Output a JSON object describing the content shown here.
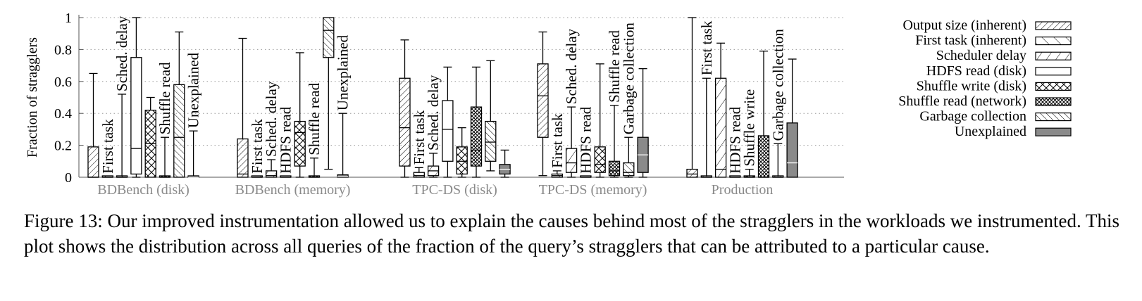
{
  "caption": "Figure 13: Our improved instrumentation allowed us to explain the causes behind most of the stragglers in the workloads we instrumented. This plot shows the distribution across all queries of the fraction of the query’s stragglers that can be attributed to a particular cause.",
  "chart_data": {
    "type": "boxplot",
    "ylabel": "Fraction of stragglers",
    "ylim": [
      0,
      1
    ],
    "yticks": [
      0,
      0.2,
      0.4,
      0.6,
      0.8,
      1
    ],
    "ytick_labels": [
      "0",
      "0.2",
      "0.4",
      "0.6",
      "0.8",
      "1"
    ],
    "grid": true,
    "legend_position": "right",
    "legend": [
      {
        "label": "Output size (inherent)",
        "pattern": "diag-dense"
      },
      {
        "label": "First task (inherent)",
        "pattern": "backdiag"
      },
      {
        "label": "Scheduler delay",
        "pattern": "diag-sparse"
      },
      {
        "label": "HDFS read (disk)",
        "pattern": "none"
      },
      {
        "label": "Shuffle write (disk)",
        "pattern": "crosshatch"
      },
      {
        "label": "Shuffle read (network)",
        "pattern": "dense-crosshatch"
      },
      {
        "label": "Garbage collection",
        "pattern": "backdiag-dense"
      },
      {
        "label": "Unexplained",
        "pattern": "solid-gray"
      }
    ],
    "groups": [
      {
        "name": "BDBench (disk)",
        "boxes": [
          {
            "cause": "Output size (inherent)",
            "min": 0,
            "q1": 0,
            "median": 0,
            "q3": 0.19,
            "max": 0.65
          },
          {
            "cause": "First task (inherent)",
            "min": 0,
            "q1": 0,
            "median": 0,
            "q3": 0.005,
            "max": 0.005,
            "label": "First task"
          },
          {
            "cause": "Scheduler delay",
            "min": 0,
            "q1": 0,
            "median": 0,
            "q3": 0.005,
            "max": 0.52,
            "label": "Sched. delay"
          },
          {
            "cause": "HDFS read (disk)",
            "min": 0,
            "q1": 0.02,
            "median": 0.18,
            "q3": 0.75,
            "max": 1.0
          },
          {
            "cause": "Shuffle write (disk)",
            "min": 0,
            "q1": 0.0,
            "median": 0.21,
            "q3": 0.42,
            "max": 0.5
          },
          {
            "cause": "Shuffle read (network)",
            "min": 0,
            "q1": 0,
            "median": 0,
            "q3": 0.005,
            "max": 0.25,
            "label": "Shuffle read"
          },
          {
            "cause": "Garbage collection",
            "min": 0,
            "q1": 0.0,
            "median": 0.25,
            "q3": 0.58,
            "max": 0.91
          },
          {
            "cause": "Unexplained",
            "min": 0,
            "q1": 0,
            "median": 0,
            "q3": 0.005,
            "max": 0.29,
            "label": "Unexplained"
          }
        ]
      },
      {
        "name": "BDBench (memory)",
        "boxes": [
          {
            "cause": "Output size (inherent)",
            "min": 0,
            "q1": 0.0,
            "median": 0.02,
            "q3": 0.24,
            "max": 0.87
          },
          {
            "cause": "First task (inherent)",
            "min": 0,
            "q1": 0,
            "median": 0,
            "q3": 0.005,
            "max": 0.005,
            "label": "First task"
          },
          {
            "cause": "Scheduler delay",
            "min": 0,
            "q1": 0,
            "median": 0.01,
            "q3": 0.04,
            "max": 0.11,
            "label": "Sched. delay"
          },
          {
            "cause": "HDFS read (disk)",
            "min": 0,
            "q1": 0,
            "median": 0,
            "q3": 0.005,
            "max": 0.005,
            "label": "HDFS read"
          },
          {
            "cause": "Shuffle write (disk)",
            "min": 0,
            "q1": 0.07,
            "median": 0.28,
            "q3": 0.35,
            "max": 0.78
          },
          {
            "cause": "Shuffle read (network)",
            "min": 0,
            "q1": 0,
            "median": 0,
            "q3": 0.005,
            "max": 0.12,
            "label": "Shuffle read"
          },
          {
            "cause": "Garbage collection",
            "min": 0.05,
            "q1": 0.75,
            "median": 0.92,
            "q3": 1.0,
            "max": 1.0
          },
          {
            "cause": "Unexplained",
            "min": 0,
            "q1": 0,
            "median": 0.005,
            "q3": 0.015,
            "max": 0.4,
            "label": "Unexplained"
          }
        ]
      },
      {
        "name": "TPC-DS (disk)",
        "boxes": [
          {
            "cause": "Output size (inherent)",
            "min": 0,
            "q1": 0.07,
            "median": 0.31,
            "q3": 0.62,
            "max": 0.86
          },
          {
            "cause": "First task (inherent)",
            "min": 0,
            "q1": 0,
            "median": 0.01,
            "q3": 0.03,
            "max": 0.06,
            "label": "First task"
          },
          {
            "cause": "Scheduler delay",
            "min": 0,
            "q1": 0.01,
            "median": 0.04,
            "q3": 0.07,
            "max": 0.15,
            "label": "Sched. delay"
          },
          {
            "cause": "HDFS read (disk)",
            "min": 0,
            "q1": 0.1,
            "median": 0.3,
            "q3": 0.48,
            "max": 0.69
          },
          {
            "cause": "Shuffle write (disk)",
            "min": 0,
            "q1": 0.02,
            "median": 0.1,
            "q3": 0.19,
            "max": 0.31
          },
          {
            "cause": "Shuffle read (network)",
            "min": 0,
            "q1": 0.07,
            "median": 0.17,
            "q3": 0.44,
            "max": 0.69
          },
          {
            "cause": "Garbage collection",
            "min": 0.04,
            "q1": 0.1,
            "median": 0.22,
            "q3": 0.35,
            "max": 0.73
          },
          {
            "cause": "Unexplained",
            "min": 0,
            "q1": 0.02,
            "median": 0.05,
            "q3": 0.08,
            "max": 0.17
          }
        ]
      },
      {
        "name": "TPC-DS (memory)",
        "boxes": [
          {
            "cause": "Output size (inherent)",
            "min": 0.01,
            "q1": 0.25,
            "median": 0.51,
            "q3": 0.71,
            "max": 0.91
          },
          {
            "cause": "First task (inherent)",
            "min": 0,
            "q1": 0,
            "median": 0.01,
            "q3": 0.02,
            "max": 0.04,
            "label": "First task"
          },
          {
            "cause": "Scheduler delay",
            "min": 0,
            "q1": 0.03,
            "median": 0.09,
            "q3": 0.18,
            "max": 0.44,
            "label": "Sched. delay"
          },
          {
            "cause": "HDFS read (disk)",
            "min": 0,
            "q1": 0,
            "median": 0,
            "q3": 0.005,
            "max": 0.005,
            "label": "HDFS read"
          },
          {
            "cause": "Shuffle write (disk)",
            "min": 0,
            "q1": 0.03,
            "median": 0.08,
            "q3": 0.19,
            "max": 0.71
          },
          {
            "cause": "Shuffle read (network)",
            "min": 0,
            "q1": 0.01,
            "median": 0.04,
            "q3": 0.1,
            "max": 0.45,
            "label": "Shuffle read"
          },
          {
            "cause": "Garbage collection",
            "min": 0,
            "q1": 0.01,
            "median": 0.03,
            "q3": 0.09,
            "max": 0.25,
            "label": "Garbage collection"
          },
          {
            "cause": "Unexplained",
            "min": 0,
            "q1": 0.03,
            "median": 0.14,
            "q3": 0.25,
            "max": 0.68
          }
        ]
      },
      {
        "name": "Production",
        "boxes": [
          {
            "cause": "Output size (inherent)",
            "min": 0,
            "q1": 0,
            "median": 0.02,
            "q3": 0.05,
            "max": 1.0
          },
          {
            "cause": "First task (inherent)",
            "min": 0,
            "q1": 0,
            "median": 0,
            "q3": 0.005,
            "max": 0.62,
            "label": "First task"
          },
          {
            "cause": "Scheduler delay",
            "min": 0,
            "q1": 0.0,
            "median": 0.05,
            "q3": 0.62,
            "max": 0.84
          },
          {
            "cause": "HDFS read (disk)",
            "min": 0,
            "q1": 0,
            "median": 0,
            "q3": 0.005,
            "max": 0.005,
            "label": "HDFS read"
          },
          {
            "cause": "Shuffle write (disk)",
            "min": 0,
            "q1": 0,
            "median": 0,
            "q3": 0.005,
            "max": 0.05,
            "label": "Shuffle write"
          },
          {
            "cause": "Shuffle read (network)",
            "min": 0,
            "q1": 0,
            "median": 0.0,
            "q3": 0.26,
            "max": 0.79
          },
          {
            "cause": "Garbage collection",
            "min": 0,
            "q1": 0,
            "median": 0,
            "q3": 0.005,
            "max": 0.21,
            "label": "Garbage collection"
          },
          {
            "cause": "Unexplained",
            "min": 0,
            "q1": 0,
            "median": 0.09,
            "q3": 0.34,
            "max": 0.74
          }
        ]
      }
    ]
  }
}
